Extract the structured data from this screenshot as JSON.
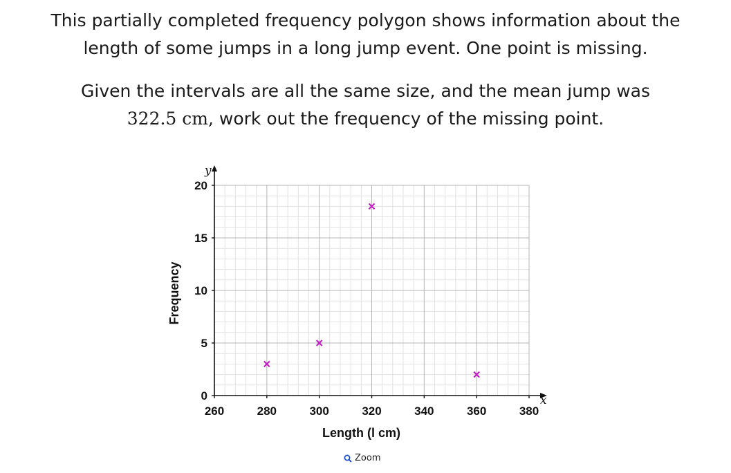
{
  "question": {
    "line1": "This partially completed frequency polygon shows information about the",
    "line2": "length of some jumps in a long jump event. One point is missing.",
    "line3": "Given the intervals are all the same size, and the mean jump was",
    "line4_value": "322.5 cm,",
    "line4_rest": " work out the frequency of the missing point."
  },
  "chart_data": {
    "type": "scatter",
    "xlabel": "Length (l cm)",
    "ylabel": "Frequency",
    "x_axis_symbol": "x",
    "y_axis_symbol": "y",
    "xlim": [
      260,
      380
    ],
    "ylim": [
      0,
      20
    ],
    "x_ticks": [
      "260",
      "280",
      "300",
      "320",
      "340",
      "360",
      "380"
    ],
    "y_ticks": [
      "0",
      "5",
      "10",
      "15",
      "20"
    ],
    "grid": true,
    "marker": "cross",
    "marker_color": "#c020c0",
    "points": [
      {
        "x": 280,
        "y": 3
      },
      {
        "x": 300,
        "y": 5
      },
      {
        "x": 320,
        "y": 18
      },
      {
        "x": 360,
        "y": 2
      }
    ]
  },
  "zoom": {
    "label": "Zoom",
    "icon": "magnifier-icon",
    "color": "#1a4fd6"
  }
}
